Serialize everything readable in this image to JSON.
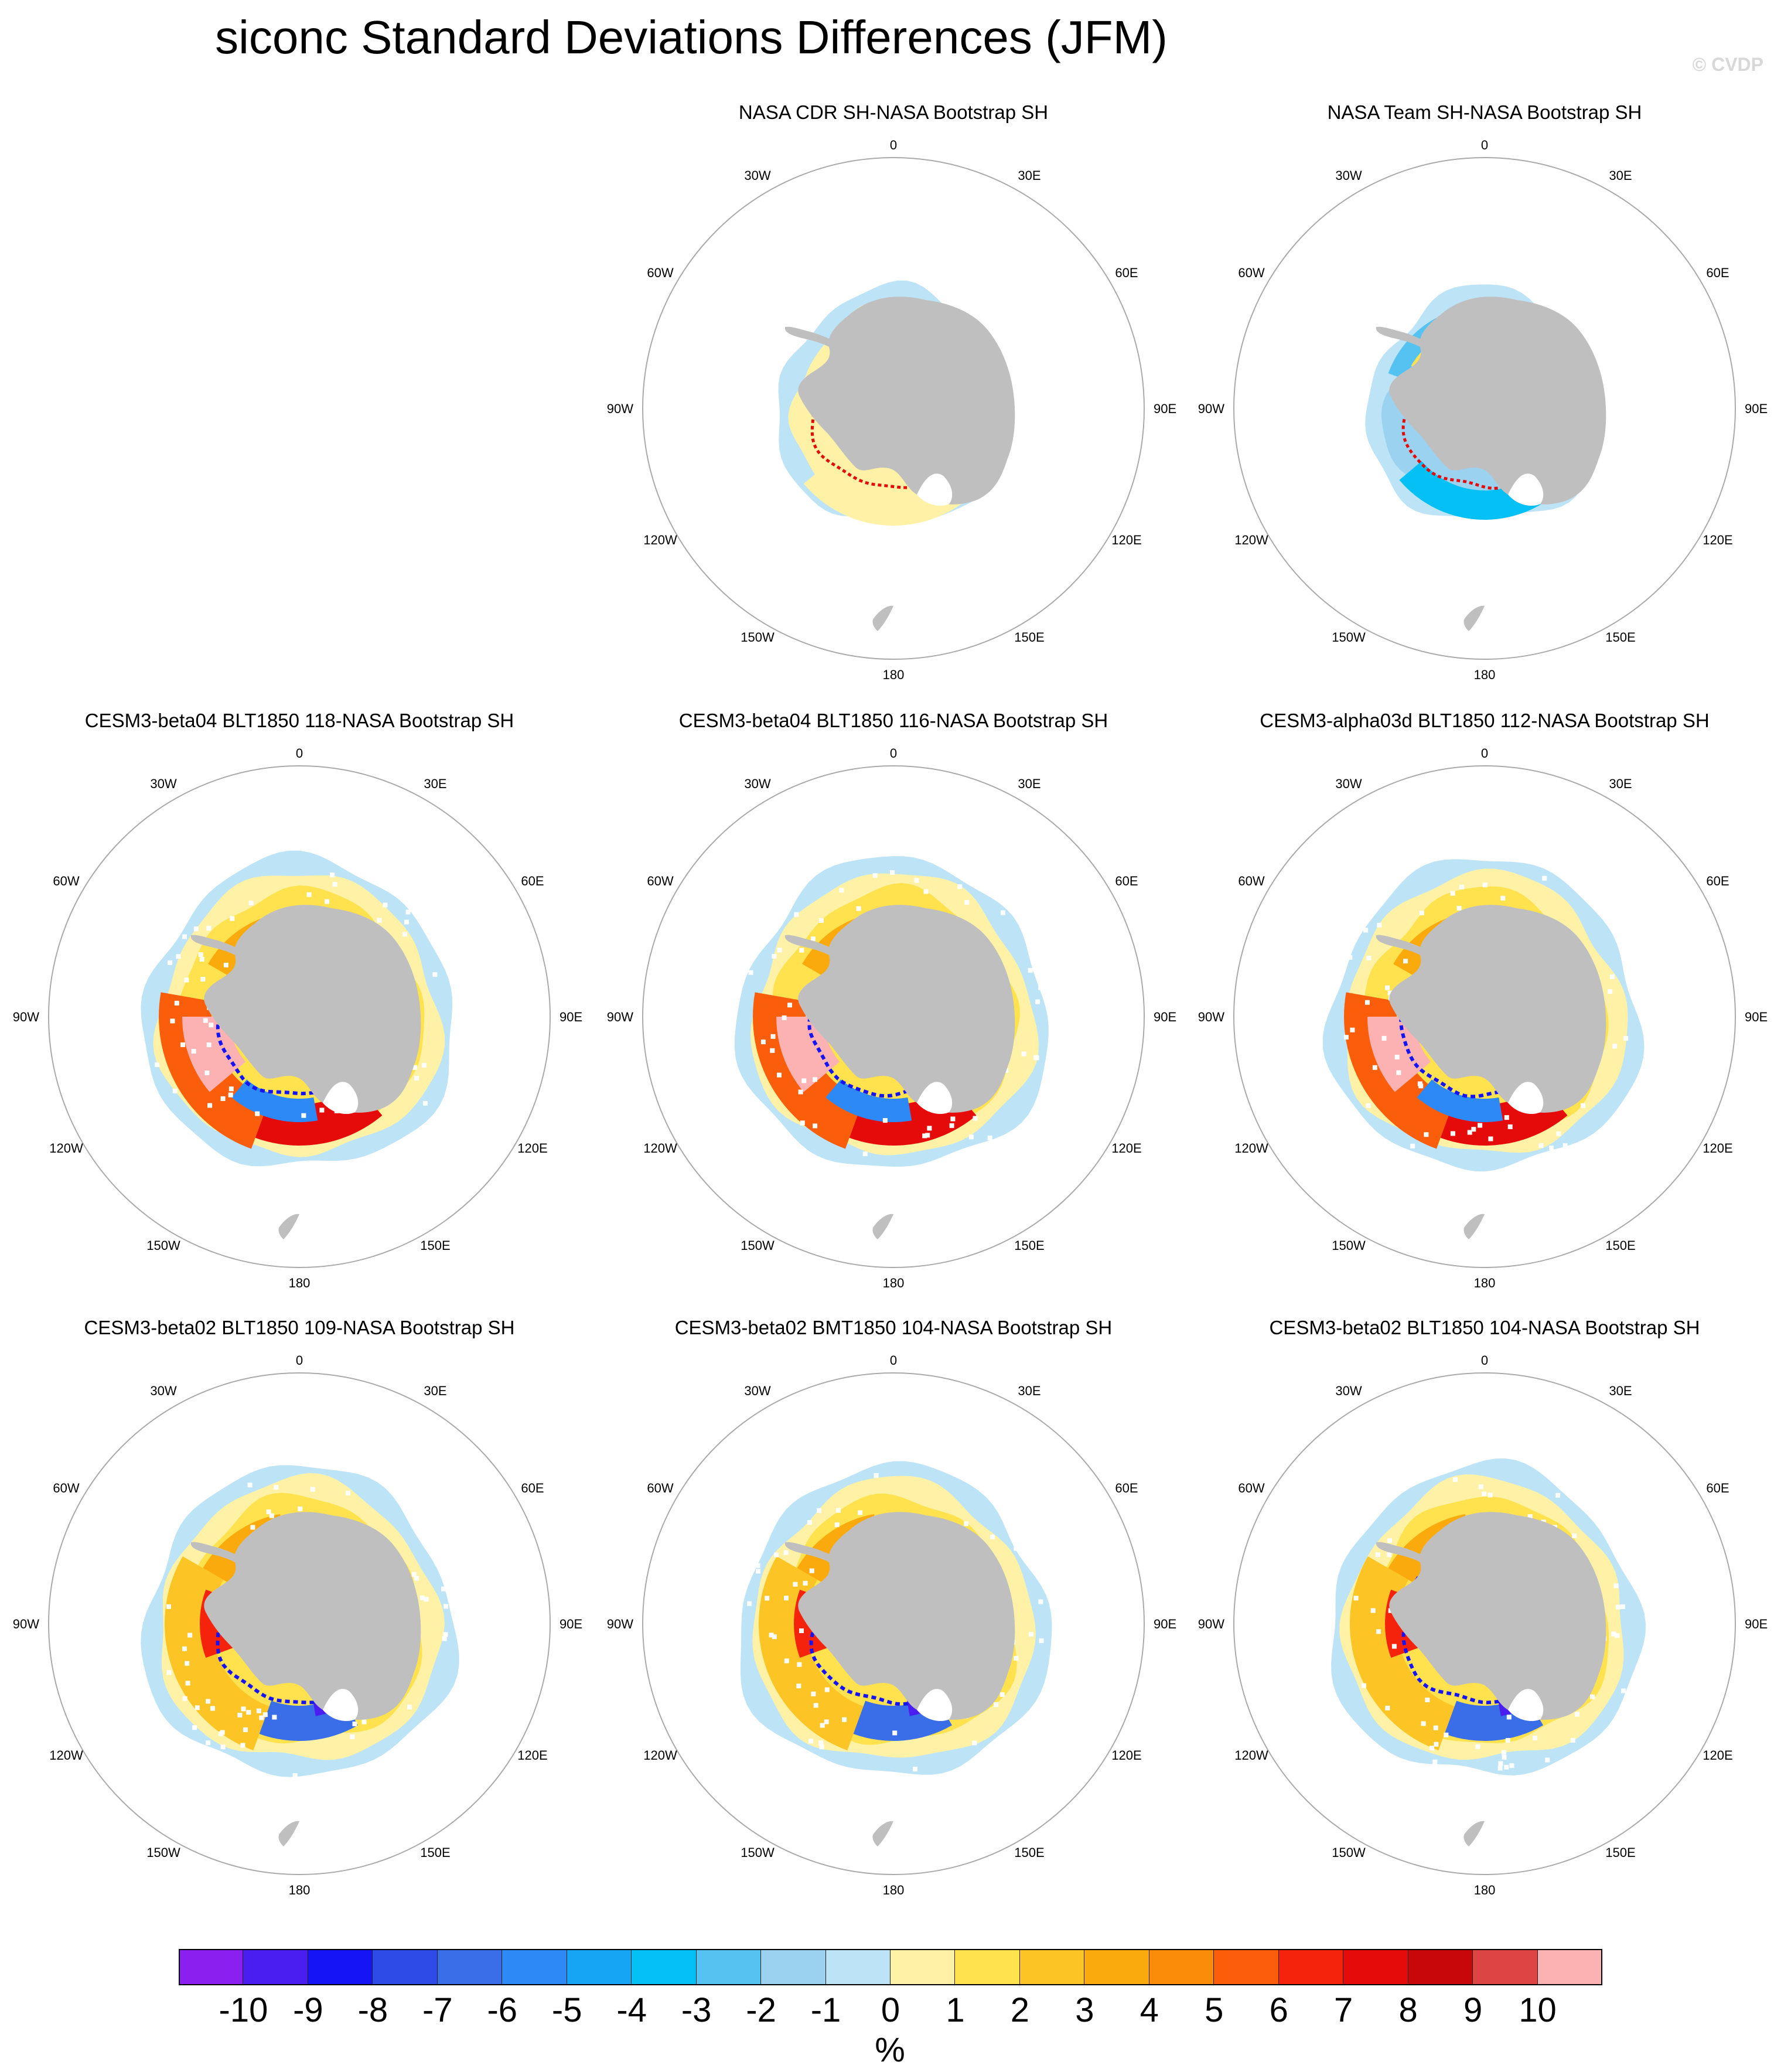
{
  "title": "siconc Standard Deviations Differences (JFM)",
  "watermark": "© CVDP",
  "lon_labels": {
    "top": "0",
    "bottom": "180",
    "left": "90W",
    "right": "90E",
    "w30": "30W",
    "e30": "30E",
    "w60": "60W",
    "e60": "60E",
    "w120": "120W",
    "e120": "120E",
    "w150": "150W",
    "e150": "150E"
  },
  "panels": [
    {
      "title": "NASA CDR SH-NASA Bootstrap SH",
      "pattern": "obs_warm"
    },
    {
      "title": "NASA Team SH-NASA Bootstrap SH",
      "pattern": "obs_cool"
    },
    {
      "title": "CESM3-beta04 BLT1850 118-NASA Bootstrap SH",
      "pattern": "model_warm"
    },
    {
      "title": "CESM3-beta04 BLT1850 116-NASA Bootstrap SH",
      "pattern": "model_warm"
    },
    {
      "title": "CESM3-alpha03d BLT1850 112-NASA Bootstrap SH",
      "pattern": "model_warm"
    },
    {
      "title": "CESM3-beta02 BLT1850 109-NASA Bootstrap SH",
      "pattern": "model_mixed"
    },
    {
      "title": "CESM3-beta02 BMT1850 104-NASA Bootstrap SH",
      "pattern": "model_mixed"
    },
    {
      "title": "CESM3-beta02 BLT1850 104-NASA Bootstrap SH",
      "pattern": "model_mixed"
    }
  ],
  "colorbar": {
    "units": "%",
    "labels": [
      "-10",
      "-9",
      "-8",
      "-7",
      "-6",
      "-5",
      "-4",
      "-3",
      "-2",
      "-1",
      "0",
      "1",
      "2",
      "3",
      "4",
      "5",
      "6",
      "7",
      "8",
      "9",
      "10"
    ],
    "colors": [
      "#8a1ff0",
      "#4a1ef0",
      "#1414f5",
      "#2e4be8",
      "#3a6ee8",
      "#2c89f5",
      "#16a5f5",
      "#05c0f5",
      "#55c3f2",
      "#9ad2f0",
      "#bde3f7",
      "#fff2a6",
      "#ffe24d",
      "#fcc525",
      "#fbaa0e",
      "#fb8c0a",
      "#fb5e0b",
      "#f5230c",
      "#e60b0b",
      "#c80808",
      "#dd4545",
      "#fcb2b2"
    ]
  },
  "colors": {
    "land": "#bfbfbf",
    "circle": "#aaaaaa"
  }
}
